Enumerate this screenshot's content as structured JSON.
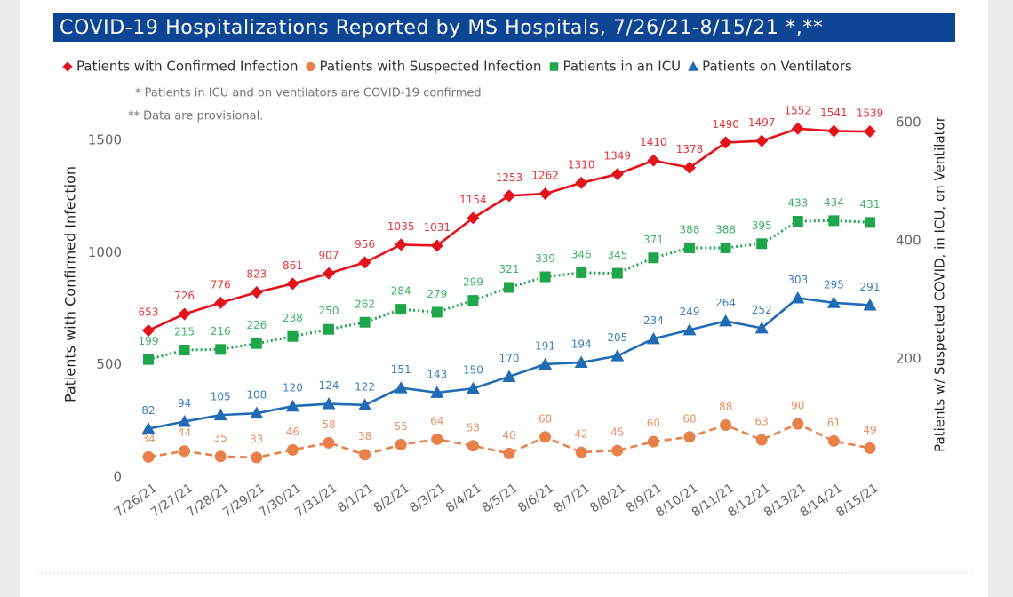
{
  "chart_data": {
    "type": "line",
    "title": "COVID-19 Hospitalizations Reported by MS Hospitals, 7/26/21-8/15/21 *,**",
    "annotations": [
      "* Patients in ICU and on ventilators are COVID-19 confirmed.",
      "** Data are provisional."
    ],
    "y_label": "Patients with Confirmed Infection",
    "y2_label": "Patients w/ Suspected COVID, in ICU, on Ventilator",
    "categories": [
      "7/26/21",
      "7/27/21",
      "7/28/21",
      "7/29/21",
      "7/30/21",
      "7/31/21",
      "8/1/21",
      "8/2/21",
      "8/3/21",
      "8/4/21",
      "8/5/21",
      "8/6/21",
      "8/7/21",
      "8/8/21",
      "8/9/21",
      "8/10/21",
      "8/11/21",
      "8/12/21",
      "8/13/21",
      "8/14/21",
      "8/15/21"
    ],
    "ylim": [
      0,
      1650
    ],
    "yticks": [
      0,
      500,
      1000,
      1500
    ],
    "y2lim": [
      0,
      627
    ],
    "y2ticks": [
      200,
      400,
      600
    ],
    "grid": false,
    "legend": "top",
    "series": [
      {
        "name": "Patients with Confirmed Infection",
        "color": "#e3121b",
        "marker": "diamond",
        "line_style": "solid",
        "axis": "y",
        "values": [
          653,
          726,
          776,
          823,
          861,
          907,
          956,
          1035,
          1031,
          1154,
          1253,
          1262,
          1310,
          1349,
          1410,
          1378,
          1490,
          1497,
          1552,
          1541,
          1539
        ]
      },
      {
        "name": "Patients with Suspected Infection",
        "color": "#e8804a",
        "marker": "circle",
        "line_style": "dashed",
        "axis": "y2",
        "values": [
          34,
          44,
          35,
          33,
          46,
          58,
          38,
          55,
          64,
          53,
          40,
          68,
          42,
          45,
          60,
          68,
          88,
          63,
          90,
          61,
          49
        ]
      },
      {
        "name": "Patients in an ICU",
        "color": "#1fa64c",
        "marker": "square",
        "line_style": "dotted",
        "axis": "y2",
        "values": [
          199,
          215,
          216,
          226,
          238,
          250,
          262,
          284,
          279,
          299,
          321,
          339,
          346,
          345,
          371,
          388,
          388,
          395,
          433,
          434,
          431
        ]
      },
      {
        "name": "Patients on Ventilators",
        "color": "#1f6bb5",
        "marker": "triangle",
        "line_style": "solid",
        "axis": "y2",
        "values": [
          82,
          94,
          105,
          108,
          120,
          124,
          122,
          151,
          143,
          150,
          170,
          191,
          194,
          205,
          234,
          249,
          264,
          252,
          303,
          295,
          291
        ]
      }
    ]
  }
}
